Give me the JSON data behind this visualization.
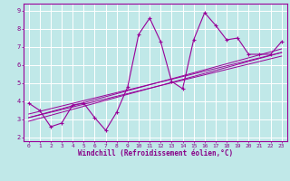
{
  "title": "",
  "xlabel": "Windchill (Refroidissement éolien,°C)",
  "ylabel": "",
  "bg_color": "#c0e8e8",
  "plot_bg_color": "#c0e8e8",
  "line_color": "#990099",
  "grid_color": "#ffffff",
  "text_color": "#880088",
  "xlim": [
    -0.5,
    23.5
  ],
  "ylim": [
    1.8,
    9.4
  ],
  "xticks": [
    0,
    1,
    2,
    3,
    4,
    5,
    6,
    7,
    8,
    9,
    10,
    11,
    12,
    13,
    14,
    15,
    16,
    17,
    18,
    19,
    20,
    21,
    22,
    23
  ],
  "yticks": [
    2,
    3,
    4,
    5,
    6,
    7,
    8,
    9
  ],
  "data_x": [
    0,
    1,
    2,
    3,
    4,
    5,
    6,
    7,
    8,
    9,
    10,
    11,
    12,
    13,
    14,
    15,
    16,
    17,
    18,
    19,
    20,
    21,
    22,
    23
  ],
  "data_y": [
    3.9,
    3.5,
    2.6,
    2.8,
    3.8,
    3.9,
    3.1,
    2.4,
    3.4,
    4.8,
    7.7,
    8.6,
    7.3,
    5.1,
    4.7,
    7.4,
    8.9,
    8.2,
    7.4,
    7.5,
    6.6,
    6.6,
    6.6,
    7.3
  ],
  "reg_lines": [
    {
      "x0": 0,
      "y0": 2.9,
      "x1": 23,
      "y1": 6.7
    },
    {
      "x0": 0,
      "y0": 3.1,
      "x1": 23,
      "y1": 6.5
    },
    {
      "x0": 0,
      "y0": 3.3,
      "x1": 23,
      "y1": 6.7
    },
    {
      "x0": 0,
      "y0": 3.1,
      "x1": 23,
      "y1": 6.9
    }
  ],
  "label_fontsize": 4.5,
  "xlabel_fontsize": 5.5
}
